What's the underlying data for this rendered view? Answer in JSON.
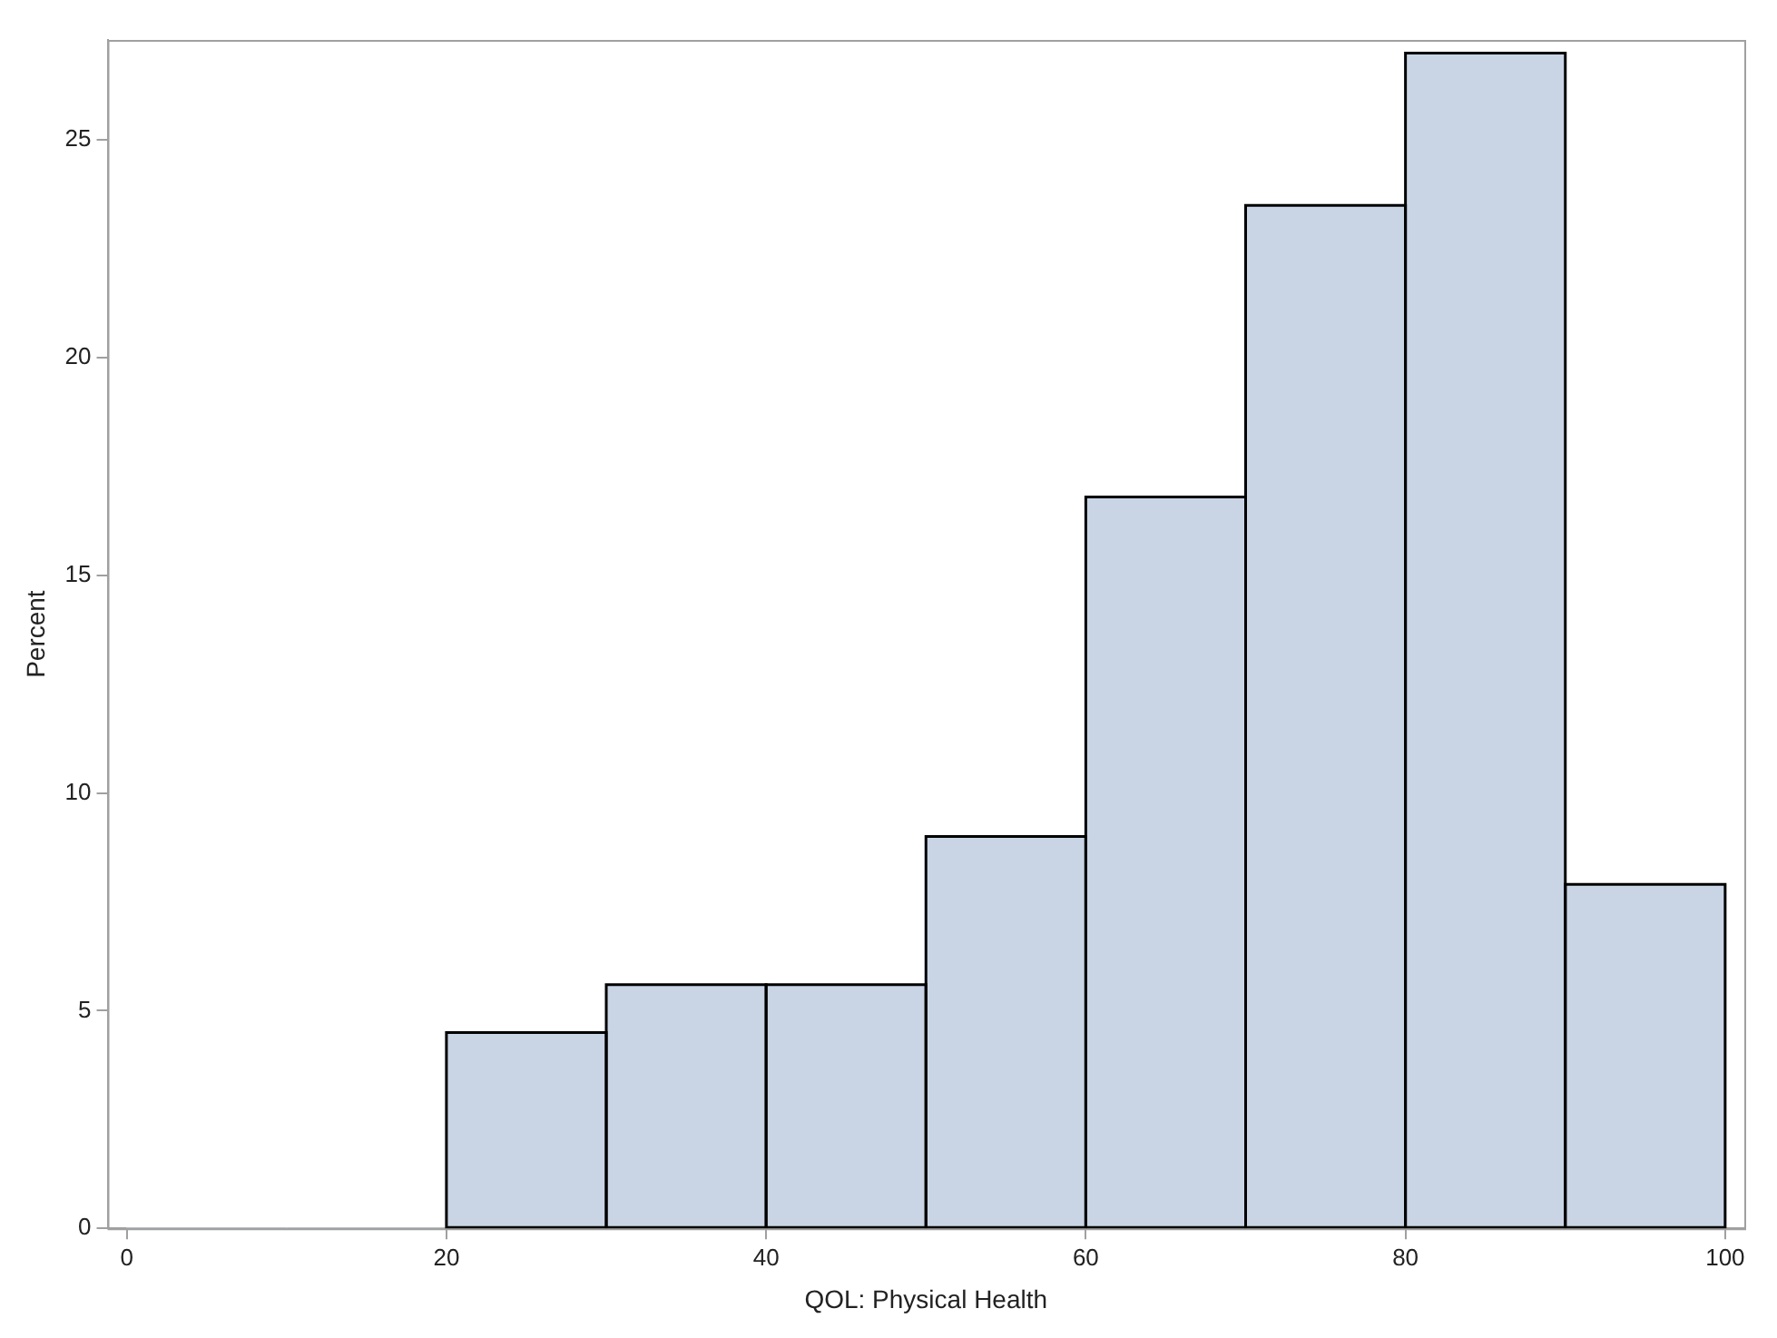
{
  "chart_data": {
    "type": "histogram",
    "xlabel": "QOL: Physical Health",
    "ylabel": "Percent",
    "bins": [
      0,
      10,
      20,
      30,
      40,
      50,
      60,
      70,
      80,
      90,
      100
    ],
    "values": [
      0,
      0,
      4.5,
      5.6,
      5.6,
      9.0,
      16.8,
      23.5,
      27.0,
      7.9
    ],
    "color": "#c9d5e5",
    "xlim": [
      -1.2,
      101.2
    ],
    "xticks": [
      0,
      20,
      40,
      60,
      80,
      100
    ],
    "ylim": [
      0,
      27.3
    ],
    "yticks": [
      0,
      5,
      10,
      15,
      20,
      25
    ],
    "grid": false,
    "legend": false
  }
}
